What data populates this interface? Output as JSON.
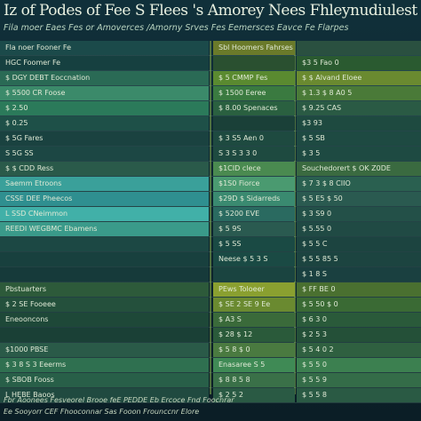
{
  "header": {
    "title": "Iz of Podes of Fee S Flees 's Amorey Nees Fhleynudiulest Fourlanine",
    "subtitle": "Fila moer Eaes Fes or Amoverces /Amorny Srves Fes Eemersces Eavce Fe Flarpes"
  },
  "table": {
    "rows": [
      {
        "left": "Fla noer Fooner Fe",
        "mid": "Sbl Hoomers Fahrses"
      },
      {
        "left": "HGC Foomer Fe",
        "right": "$3 5 Fao 0"
      },
      {
        "left": "$ DGY DEBT Eoccnation",
        "mid": "$ 5 CMMP Fes",
        "right": "$ $ Alvand Eloee"
      },
      {
        "left": "$ 5500 CR Foose",
        "mid": "$ 1500 Eeree",
        "right": "$ 1.3 $ 8 A0 5"
      },
      {
        "left": "$ 2.50",
        "mid": "$ 8.00 Spenaces",
        "right": "$ 9.25 CAS"
      },
      {
        "left": "$ 0.25",
        "right": "$3 93"
      },
      {
        "left": "$ 5G Fares",
        "mid": "$ 3 S5 Aen 0",
        "right": "$ 5 SB"
      },
      {
        "left": "S 5G SS",
        "mid": "S 3 S 3 3 0",
        "right": "$ 3 5"
      },
      {
        "left": "$ $ CDD Ress",
        "mid": "$1CID clece",
        "right": "Souchedorert $ OK Z0DE"
      },
      {
        "left": "Saemm Etroons",
        "mid": "$1S0 Fiorce",
        "right": "$ 7 3 $ 8 CIIO"
      },
      {
        "left": "CSSE DEE Pheecos",
        "mid": "$29D $ Sidarreds",
        "right": "$ 5 E5 $ 50"
      },
      {
        "left": "L SSD CNeimmon",
        "mid": "$ 5200 EVE",
        "right": "$ 3 S9 0"
      },
      {
        "left": "REEDI WEGBMC Ebamens",
        "mid": "$ 5 9S",
        "right": "$ 5.55 0"
      },
      {
        "mid": "$ 5 SS",
        "right": "$ 5 5 C"
      },
      {
        "mid": "Neese $ 5 3 S",
        "right": "$ 5 5 85 5"
      },
      {
        "right": "$ 1 8 S"
      },
      {
        "left": "Pbstuarters",
        "mid": "PEws Toloeer",
        "right": "$ FF BE 0"
      },
      {
        "left": "$ 2 SE Fooeee",
        "mid": "$ SE 2 SE 9 Ee",
        "right": "$ 5 50 $ 0"
      },
      {
        "left": "Eneooncons",
        "mid": "$ A3 S",
        "right": "$ 6 3 0"
      },
      {
        "mid": "$ 28 $ 12",
        "right": "$ 2 5 3"
      },
      {
        "left": "$1000 PBSE",
        "mid": "$ 5 8 $ 0",
        "right": "$ 5 4 0 2"
      },
      {
        "left": "$ 3 8 S 3 Eeerms",
        "mid": "Enasaree S 5",
        "right": "$ 5 5 0"
      },
      {
        "left": "$ SBOB Fooss",
        "mid": "$ 8 8 5 8",
        "right": "$ 5 5 9"
      },
      {
        "left": "L HEBE Baoos",
        "mid": "$ 2 5 2",
        "right": "$ 5 5 8"
      }
    ]
  },
  "footer": {
    "line1": "Fbr Aoonees Fesveorel Brooe feE PEDDE Eb Ercoce Fnd Foocnrar",
    "line2": "Ee Sooyorr CEF Fhooconnar Sas Fooon Frounccnr Elore"
  }
}
